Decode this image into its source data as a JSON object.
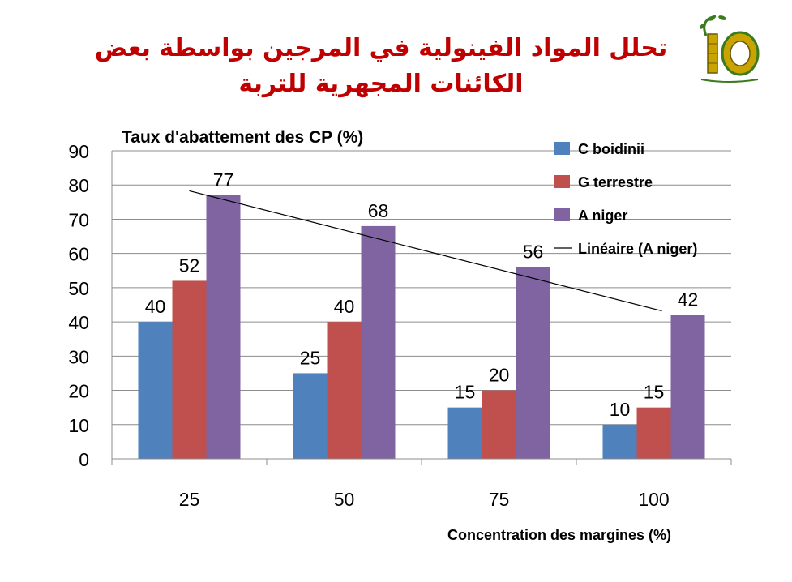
{
  "slide": {
    "title": "تحلل المواد الفينولية في المرجين بواسطة بعض الكائنات المجهرية للتربة"
  },
  "chart_data": {
    "type": "bar",
    "ylabel": "Taux d'abattement des CP (%)",
    "xlabel": "Concentration des margines (%)",
    "categories": [
      "25",
      "50",
      "75",
      "100"
    ],
    "series": [
      {
        "name": "C boidinii",
        "values": [
          40,
          25,
          15,
          10
        ],
        "color": "#4f81bd"
      },
      {
        "name": "G terrestre",
        "values": [
          52,
          40,
          20,
          15
        ],
        "color": "#c0504d"
      },
      {
        "name": "A niger",
        "values": [
          77,
          68,
          56,
          42
        ],
        "color": "#8064a2"
      }
    ],
    "trendline": {
      "name": "Linéaire (A niger)",
      "series": "A niger",
      "type": "linear",
      "color": "#000000"
    },
    "ylim": [
      0,
      90
    ],
    "yticks": [
      0,
      10,
      20,
      30,
      40,
      50,
      60,
      70,
      80,
      90
    ],
    "grid": true,
    "legend": "top-right"
  }
}
